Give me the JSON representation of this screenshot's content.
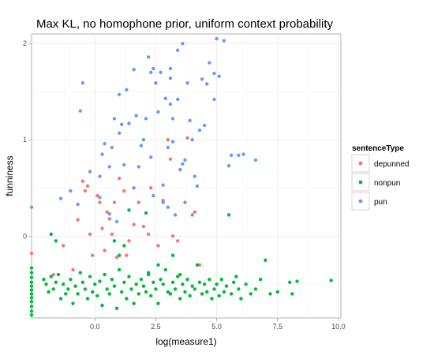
{
  "chart_data": {
    "type": "scatter",
    "title": "Max KL, no homophone prior, uniform context probability",
    "xlabel": "log(measure1)",
    "ylabel": "funniness",
    "xlim": [
      -2.6,
      10.1
    ],
    "ylim": [
      -0.85,
      2.1
    ],
    "x_ticks": [
      0,
      2.5,
      5,
      7.5,
      10
    ],
    "x_tick_labels": [
      "0.0",
      "2.5",
      "5.0",
      "7.5",
      "10.0"
    ],
    "y_ticks": [
      0,
      1,
      2
    ],
    "y_tick_labels": [
      "0",
      "1",
      "2"
    ],
    "grid": true,
    "legend": {
      "title": "sentenceType",
      "position": "right"
    },
    "series": [
      {
        "name": "depunned",
        "color": "#F8766D",
        "points": [
          [
            -2.6,
            -0.18
          ],
          [
            -1.7,
            -0.4
          ],
          [
            -1.3,
            -0.1
          ],
          [
            -0.9,
            -0.35
          ],
          [
            -0.7,
            0.17
          ],
          [
            -0.5,
            0.57
          ],
          [
            -0.4,
            0.47
          ],
          [
            -0.3,
            0.52
          ],
          [
            -0.2,
            0.02
          ],
          [
            -0.1,
            -0.2
          ],
          [
            0.1,
            0.42
          ],
          [
            0.2,
            0.35
          ],
          [
            0.3,
            0.08
          ],
          [
            0.4,
            -0.15
          ],
          [
            0.5,
            0.25
          ],
          [
            0.6,
            0.18
          ],
          [
            0.7,
            0.02
          ],
          [
            0.8,
            0.35
          ],
          [
            0.9,
            -0.22
          ],
          [
            1.0,
            0.6
          ],
          [
            1.2,
            0.47
          ],
          [
            1.3,
            -0.2
          ],
          [
            1.4,
            -0.05
          ],
          [
            1.6,
            0.12
          ],
          [
            1.8,
            0.35
          ],
          [
            2.0,
            0.1
          ],
          [
            2.2,
            0.02
          ],
          [
            2.3,
            0.5
          ],
          [
            2.6,
            -0.1
          ],
          [
            2.8,
            0.37
          ],
          [
            3.0,
            1.0
          ],
          [
            3.1,
            0.8
          ],
          [
            3.2,
            0.0
          ],
          [
            3.4,
            -0.05
          ],
          [
            3.8,
            1.02
          ],
          [
            4.1,
            0.25
          ],
          [
            4.3,
            -0.3
          ]
        ]
      },
      {
        "name": "nonpun",
        "color": "#00BA38",
        "points": [
          [
            -2.6,
            -0.33
          ],
          [
            -2.6,
            -0.38
          ],
          [
            -2.6,
            -0.43
          ],
          [
            -2.6,
            -0.48
          ],
          [
            -2.6,
            -0.52
          ],
          [
            -2.6,
            -0.56
          ],
          [
            -2.6,
            -0.6
          ],
          [
            -2.6,
            -0.64
          ],
          [
            -2.6,
            -0.68
          ],
          [
            -2.6,
            -0.73
          ],
          [
            -2.6,
            -0.78
          ],
          [
            -2.6,
            -0.82
          ],
          [
            -2.1,
            -0.45
          ],
          [
            -2.0,
            -0.5
          ],
          [
            -1.9,
            -0.58
          ],
          [
            -1.8,
            -0.42
          ],
          [
            -1.7,
            -0.55
          ],
          [
            -1.6,
            -0.48
          ],
          [
            -1.5,
            -0.4
          ],
          [
            -1.4,
            -0.65
          ],
          [
            -1.3,
            -0.5
          ],
          [
            -1.2,
            -0.6
          ],
          [
            -1.1,
            -0.55
          ],
          [
            -1.0,
            -0.45
          ],
          [
            -0.9,
            -0.7
          ],
          [
            -0.8,
            -0.52
          ],
          [
            -0.7,
            -0.6
          ],
          [
            -0.6,
            -0.38
          ],
          [
            -0.5,
            -0.48
          ],
          [
            -0.4,
            -0.55
          ],
          [
            -0.3,
            -0.65
          ],
          [
            -0.2,
            -0.42
          ],
          [
            -0.1,
            -0.58
          ],
          [
            0.0,
            -0.5
          ],
          [
            0.1,
            -0.62
          ],
          [
            0.2,
            -0.47
          ],
          [
            0.3,
            -0.72
          ],
          [
            0.4,
            -0.4
          ],
          [
            0.5,
            -0.55
          ],
          [
            0.6,
            -0.6
          ],
          [
            0.7,
            -0.45
          ],
          [
            0.8,
            -0.52
          ],
          [
            0.9,
            -0.75
          ],
          [
            1.0,
            -0.35
          ],
          [
            1.1,
            -0.58
          ],
          [
            1.2,
            -0.48
          ],
          [
            1.3,
            -0.65
          ],
          [
            1.4,
            -0.42
          ],
          [
            1.5,
            -0.55
          ],
          [
            1.6,
            -0.7
          ],
          [
            1.7,
            -0.5
          ],
          [
            1.8,
            -0.6
          ],
          [
            1.9,
            -0.45
          ],
          [
            2.0,
            -0.52
          ],
          [
            2.1,
            -0.58
          ],
          [
            2.2,
            -0.4
          ],
          [
            2.3,
            -0.62
          ],
          [
            2.4,
            -0.48
          ],
          [
            2.5,
            -0.55
          ],
          [
            2.6,
            -0.7
          ],
          [
            2.7,
            -0.45
          ],
          [
            2.8,
            -0.5
          ],
          [
            2.9,
            -0.35
          ],
          [
            3.0,
            -0.58
          ],
          [
            3.1,
            -0.6
          ],
          [
            3.2,
            -0.48
          ],
          [
            3.3,
            -0.55
          ],
          [
            3.4,
            -0.42
          ],
          [
            3.5,
            -0.65
          ],
          [
            3.6,
            -0.5
          ],
          [
            3.7,
            -0.58
          ],
          [
            3.8,
            -0.45
          ],
          [
            3.9,
            -0.62
          ],
          [
            4.0,
            -0.52
          ],
          [
            4.1,
            -0.55
          ],
          [
            4.2,
            -0.3
          ],
          [
            4.3,
            -0.48
          ],
          [
            4.4,
            -0.6
          ],
          [
            4.5,
            -0.5
          ],
          [
            4.6,
            -0.58
          ],
          [
            4.7,
            -0.45
          ],
          [
            4.8,
            -0.65
          ],
          [
            4.9,
            -0.55
          ],
          [
            5.0,
            -0.5
          ],
          [
            5.1,
            -0.62
          ],
          [
            5.2,
            -0.45
          ],
          [
            5.3,
            -0.58
          ],
          [
            5.4,
            -0.52
          ],
          [
            5.5,
            0.22
          ],
          [
            5.6,
            -0.6
          ],
          [
            5.7,
            -0.48
          ],
          [
            5.8,
            -0.42
          ],
          [
            5.9,
            -0.55
          ],
          [
            6.0,
            -0.65
          ],
          [
            6.2,
            -0.5
          ],
          [
            6.4,
            -0.6
          ],
          [
            6.6,
            -0.55
          ],
          [
            6.8,
            -0.45
          ],
          [
            7.0,
            -0.25
          ],
          [
            7.2,
            -0.6
          ],
          [
            7.5,
            -0.58
          ],
          [
            8.0,
            -0.48
          ],
          [
            8.1,
            -0.6
          ],
          [
            8.3,
            -0.47
          ],
          [
            9.7,
            -0.46
          ],
          [
            -1.8,
            0.02
          ],
          [
            -1.6,
            -0.05
          ],
          [
            0.8,
            -0.05
          ],
          [
            1.2,
            -0.1
          ],
          [
            1.0,
            -0.2
          ],
          [
            1.4,
            0.27
          ],
          [
            2.1,
            0.24
          ],
          [
            2.2,
            -0.38
          ],
          [
            2.6,
            -0.3
          ],
          [
            3.2,
            -0.2
          ],
          [
            3.5,
            -0.4
          ]
        ]
      },
      {
        "name": "pun",
        "color": "#619CFF",
        "points": [
          [
            -2.6,
            0.3
          ],
          [
            -1.4,
            0.39
          ],
          [
            -1.0,
            0.47
          ],
          [
            -0.7,
            0.33
          ],
          [
            -0.5,
            1.59
          ],
          [
            -0.6,
            1.3
          ],
          [
            -0.2,
            0.67
          ],
          [
            0.2,
            0.4
          ],
          [
            0.2,
            0.62
          ],
          [
            0.3,
            0.85
          ],
          [
            0.4,
            0.96
          ],
          [
            0.6,
            0.72
          ],
          [
            0.6,
            0.23
          ],
          [
            0.7,
            0.92
          ],
          [
            0.8,
            1.22
          ],
          [
            1.0,
            1.07
          ],
          [
            1.0,
            1.47
          ],
          [
            1.1,
            1.16
          ],
          [
            1.2,
            0.74
          ],
          [
            1.3,
            1.52
          ],
          [
            1.4,
            1.17
          ],
          [
            1.6,
            1.73
          ],
          [
            1.7,
            1.25
          ],
          [
            1.8,
            0.72
          ],
          [
            1.9,
            0.94
          ],
          [
            2.0,
            1.0
          ],
          [
            2.1,
            1.22
          ],
          [
            2.2,
            1.86
          ],
          [
            2.3,
            0.82
          ],
          [
            2.3,
            1.7
          ],
          [
            2.4,
            1.74
          ],
          [
            2.5,
            1.59
          ],
          [
            2.6,
            1.29
          ],
          [
            2.7,
            1.7
          ],
          [
            2.8,
            0.53
          ],
          [
            2.9,
            1.43
          ],
          [
            3.0,
            0.92
          ],
          [
            3.1,
            1.37
          ],
          [
            3.1,
            1.74
          ],
          [
            3.1,
            1.64
          ],
          [
            3.2,
            1.22
          ],
          [
            3.3,
            0.22
          ],
          [
            3.4,
            1.42
          ],
          [
            3.5,
            0.69
          ],
          [
            3.6,
            0.75
          ],
          [
            3.7,
            0.79
          ],
          [
            3.8,
            1.59
          ],
          [
            3.9,
            1.2
          ],
          [
            4.0,
            1.0
          ],
          [
            4.1,
            0.62
          ],
          [
            4.2,
            0.52
          ],
          [
            4.3,
            1.1
          ],
          [
            4.4,
            1.63
          ],
          [
            4.5,
            1.15
          ],
          [
            4.6,
            1.58
          ],
          [
            4.7,
            1.8
          ],
          [
            4.9,
            1.42
          ],
          [
            4.9,
            1.69
          ],
          [
            5.0,
            2.05
          ],
          [
            5.1,
            1.66
          ],
          [
            5.3,
            2.03
          ],
          [
            5.6,
            0.84
          ],
          [
            5.5,
            0.73
          ],
          [
            5.9,
            0.84
          ],
          [
            6.1,
            0.85
          ],
          [
            6.6,
            0.79
          ],
          [
            3.4,
            1.93
          ],
          [
            3.6,
            2.0
          ],
          [
            3.0,
            0.3
          ],
          [
            2.8,
            0.35
          ],
          [
            3.2,
            0.98
          ],
          [
            3.7,
            0.35
          ],
          [
            4.0,
            0.22
          ],
          [
            1.6,
            0.5
          ],
          [
            2.4,
            0.42
          ],
          [
            0.9,
            0.15
          ]
        ]
      }
    ]
  }
}
